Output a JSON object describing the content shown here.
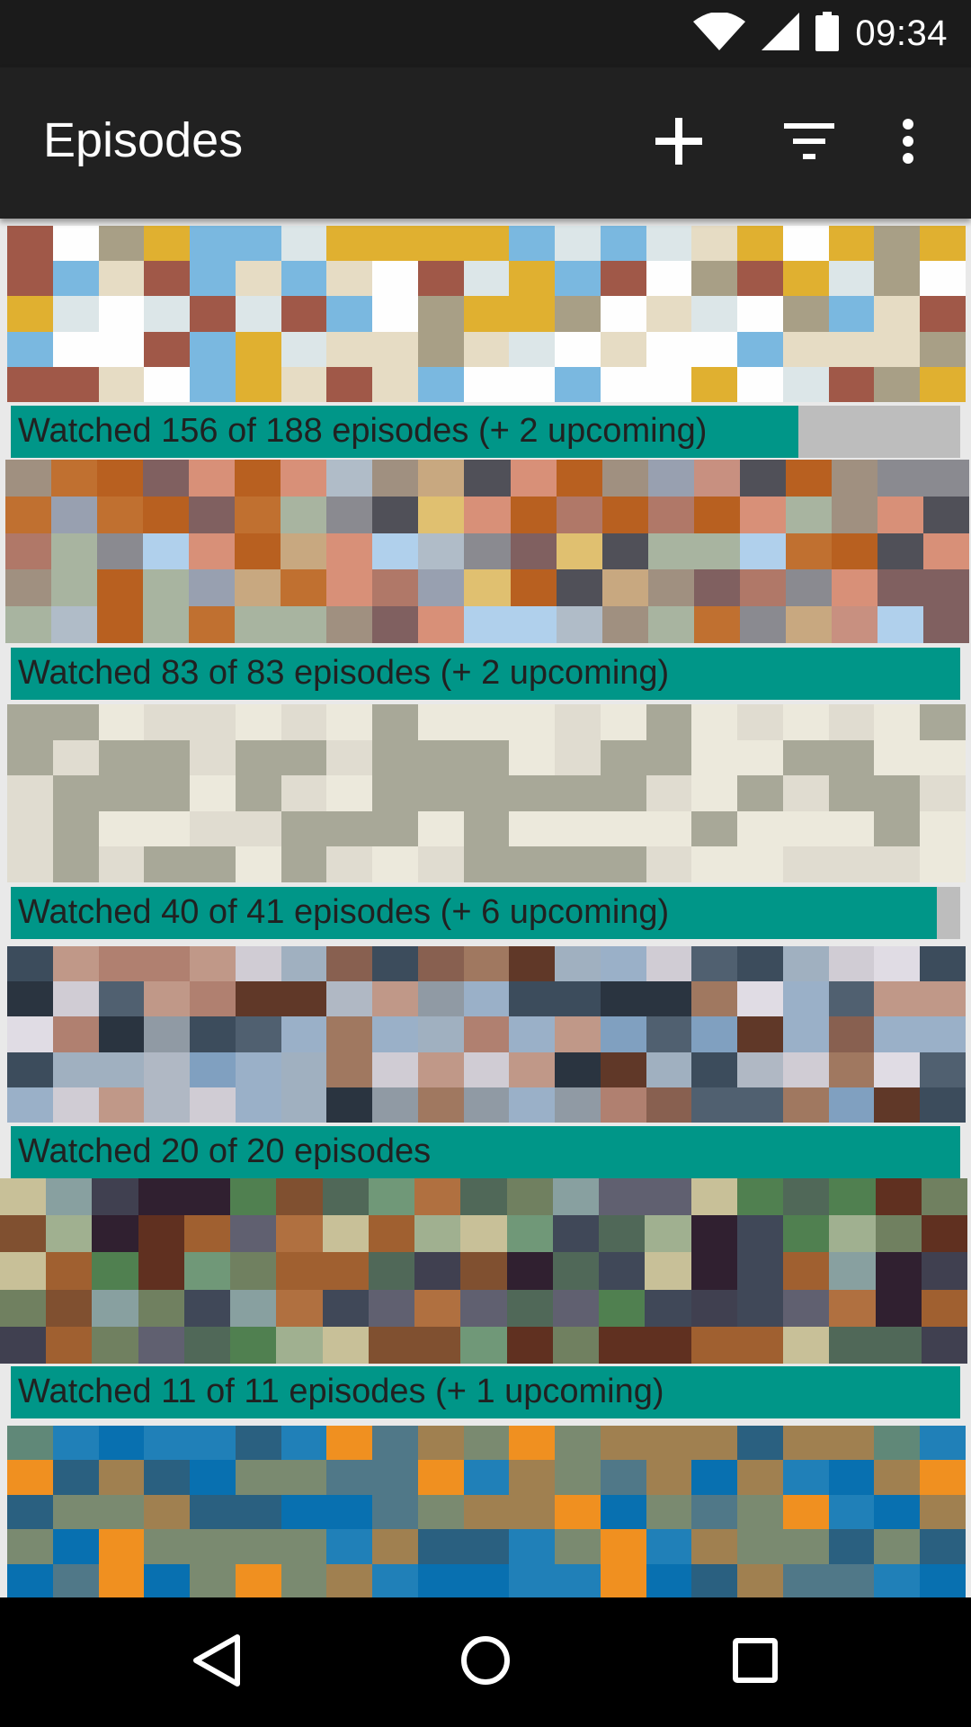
{
  "status_bar": {
    "time": "09:34",
    "icons": [
      "wifi-icon",
      "cell-signal-icon",
      "battery-icon"
    ]
  },
  "app_bar": {
    "title": "Episodes",
    "actions": [
      "add-icon",
      "filter-icon",
      "more-vert-icon"
    ]
  },
  "shows": [
    {
      "progress_text": "Watched 156 of 188 episodes (+ 2 upcoming)",
      "watched": 156,
      "total": 188
    },
    {
      "progress_text": "Watched 83 of 83 episodes (+ 2 upcoming)",
      "watched": 83,
      "total": 83
    },
    {
      "progress_text": "Watched 40 of 41 episodes (+ 6 upcoming)",
      "watched": 40,
      "total": 41
    },
    {
      "progress_text": "Watched 20 of 20 episodes",
      "watched": 20,
      "total": 20
    },
    {
      "progress_text": "Watched 11 of 11 episodes (+ 1 upcoming)",
      "watched": 11,
      "total": 11
    },
    {
      "progress_text": "",
      "watched": null,
      "total": null
    }
  ],
  "colors": {
    "accent": "#009688",
    "progress_track": "#bdbdbd",
    "app_bar": "#212121",
    "status_bar": "#1b1b1b"
  },
  "nav_bar": {
    "buttons": [
      "back-icon",
      "home-icon",
      "recents-icon"
    ]
  }
}
